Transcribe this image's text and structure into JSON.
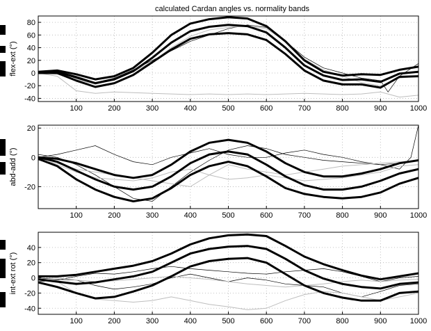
{
  "chart_data": [
    {
      "type": "line",
      "title": "calculated Cardan angles vs. normality bands",
      "ylabel": "flex-ext (°)",
      "xlim": [
        0,
        1000
      ],
      "ylim": [
        -45,
        90
      ],
      "xticks": [
        100,
        200,
        300,
        400,
        500,
        600,
        700,
        800,
        900,
        1000
      ],
      "yticks": [
        -40,
        -20,
        0,
        20,
        40,
        60,
        80
      ],
      "grid": true,
      "bands": {
        "x": [
          0,
          50,
          100,
          150,
          200,
          250,
          300,
          350,
          400,
          450,
          500,
          550,
          600,
          650,
          700,
          750,
          800,
          850,
          900,
          950,
          1000
        ],
        "upper": [
          2,
          4,
          -2,
          -10,
          -5,
          8,
          32,
          60,
          78,
          85,
          88,
          86,
          74,
          50,
          20,
          2,
          -4,
          -2,
          -3,
          5,
          10
        ],
        "mean": [
          1,
          2,
          -7,
          -16,
          -10,
          3,
          24,
          48,
          66,
          73,
          76,
          74,
          64,
          40,
          12,
          -4,
          -11,
          -10,
          -14,
          -1,
          2
        ],
        "lower": [
          0,
          0,
          -12,
          -22,
          -16,
          -3,
          17,
          37,
          54,
          61,
          63,
          61,
          52,
          30,
          4,
          -12,
          -18,
          -18,
          -23,
          -6,
          -5
        ]
      },
      "traces": [
        {
          "color": "#000000",
          "x": [
            0,
            50,
            100,
            150,
            200,
            250,
            300,
            350,
            400,
            450,
            500,
            550,
            600,
            650,
            700,
            750,
            800,
            850,
            900,
            920,
            950,
            1000
          ],
          "y": [
            0,
            3,
            -5,
            -15,
            -8,
            5,
            20,
            35,
            50,
            60,
            70,
            76,
            72,
            50,
            25,
            8,
            0,
            -8,
            -12,
            -30,
            -5,
            15
          ]
        },
        {
          "color": "#bdbdbd",
          "x": [
            0,
            50,
            100,
            150,
            200,
            250,
            300,
            350,
            400,
            450,
            500,
            550,
            600,
            650,
            700,
            750,
            800,
            850,
            900,
            950,
            1000
          ],
          "y": [
            0,
            -2,
            -10,
            -18,
            -10,
            2,
            18,
            40,
            58,
            68,
            72,
            74,
            70,
            50,
            22,
            5,
            -5,
            -15,
            -20,
            -8,
            -5
          ]
        },
        {
          "color": "#bdbdbd",
          "x": [
            0,
            50,
            100,
            150,
            200,
            250,
            300,
            350,
            400,
            450,
            500,
            550,
            600,
            650,
            700,
            750,
            800,
            850,
            900,
            950,
            1000
          ],
          "y": [
            0,
            -5,
            -28,
            -32,
            -30,
            -31,
            -32,
            -33,
            -34,
            -33,
            -34,
            -33,
            -34,
            -33,
            -32,
            -33,
            -34,
            -33,
            -30,
            -38,
            -35
          ]
        }
      ]
    },
    {
      "type": "line",
      "title": "",
      "ylabel": "abd-add (°)",
      "xlim": [
        0,
        1000
      ],
      "ylim": [
        -35,
        22
      ],
      "xticks": [
        100,
        200,
        300,
        400,
        500,
        600,
        700,
        800,
        900,
        1000
      ],
      "yticks": [
        -20,
        0,
        20
      ],
      "grid": true,
      "bands": {
        "x": [
          0,
          50,
          100,
          150,
          200,
          250,
          300,
          350,
          400,
          450,
          500,
          550,
          600,
          650,
          700,
          750,
          800,
          850,
          900,
          950,
          1000
        ],
        "upper": [
          0,
          -1,
          -4,
          -8,
          -12,
          -14,
          -12,
          -5,
          4,
          10,
          12,
          10,
          4,
          -4,
          -10,
          -13,
          -13,
          -11,
          -8,
          -4,
          -2
        ],
        "mean": [
          0,
          -3,
          -9,
          -15,
          -20,
          -22,
          -20,
          -13,
          -4,
          2,
          4,
          2,
          -5,
          -13,
          -19,
          -22,
          -22,
          -20,
          -16,
          -11,
          -8
        ],
        "lower": [
          -1,
          -6,
          -15,
          -22,
          -27,
          -30,
          -28,
          -21,
          -12,
          -6,
          -3,
          -6,
          -13,
          -21,
          -25,
          -27,
          -28,
          -27,
          -24,
          -18,
          -14
        ]
      },
      "traces": [
        {
          "color": "#000000",
          "x": [
            0,
            50,
            100,
            150,
            200,
            250,
            300,
            350,
            400,
            450,
            500,
            550,
            600,
            650,
            700,
            750,
            800,
            850,
            900,
            950,
            980,
            1000
          ],
          "y": [
            2,
            0,
            -5,
            -12,
            -20,
            -28,
            -30,
            -20,
            -10,
            -2,
            5,
            8,
            6,
            2,
            0,
            -2,
            -3,
            -4,
            -5,
            -8,
            0,
            22
          ]
        },
        {
          "color": "#000000",
          "x": [
            0,
            50,
            100,
            150,
            200,
            250,
            300,
            350,
            400,
            450,
            500,
            550,
            600,
            650,
            700,
            750,
            800,
            850,
            900,
            950,
            1000
          ],
          "y": [
            0,
            2,
            5,
            8,
            2,
            -3,
            -5,
            0,
            3,
            6,
            2,
            0,
            0,
            3,
            5,
            2,
            0,
            -3,
            -5,
            -4,
            -2
          ]
        },
        {
          "color": "#bdbdbd",
          "x": [
            0,
            50,
            100,
            150,
            200,
            250,
            300,
            350,
            400,
            450,
            500,
            550,
            600,
            650,
            700,
            750,
            800,
            850,
            900,
            950,
            1000
          ],
          "y": [
            -1,
            -5,
            -10,
            -14,
            -15,
            -16,
            -14,
            -10,
            -8,
            -12,
            -15,
            -14,
            -12,
            -14,
            -16,
            -15,
            -14,
            -12,
            -10,
            -6,
            -5
          ]
        },
        {
          "color": "#bdbdbd",
          "x": [
            0,
            50,
            100,
            150,
            200,
            250,
            300,
            350,
            400,
            450,
            500,
            550,
            600,
            650,
            700,
            750,
            800,
            850,
            900,
            950,
            1000
          ],
          "y": [
            -2,
            -4,
            -8,
            -10,
            -12,
            -14,
            -16,
            -18,
            -20,
            -12,
            -5,
            -8,
            -10,
            -12,
            -10,
            -8,
            -6,
            -5,
            -4,
            -3,
            -2
          ]
        }
      ]
    },
    {
      "type": "line",
      "title": "",
      "ylabel": "int-ext rot (°)",
      "xlim": [
        0,
        1000
      ],
      "ylim": [
        -48,
        60
      ],
      "xticks": [
        100,
        200,
        300,
        400,
        500,
        600,
        700,
        800,
        900,
        1000
      ],
      "yticks": [
        -40,
        -20,
        0,
        20,
        40
      ],
      "xticklabels": [
        "100",
        "200",
        "300",
        "400",
        "500",
        "600",
        "700",
        "800",
        "900",
        "1000"
      ],
      "grid": true,
      "bands": {
        "x": [
          0,
          50,
          100,
          150,
          200,
          250,
          300,
          350,
          400,
          450,
          500,
          550,
          600,
          650,
          700,
          750,
          800,
          850,
          900,
          950,
          1000
        ],
        "upper": [
          2,
          2,
          4,
          8,
          12,
          16,
          22,
          32,
          44,
          52,
          56,
          57,
          55,
          42,
          28,
          18,
          10,
          3,
          -2,
          2,
          6
        ],
        "mean": [
          -2,
          -5,
          -8,
          -6,
          -2,
          2,
          8,
          20,
          32,
          38,
          41,
          42,
          38,
          25,
          10,
          -1,
          -8,
          -12,
          -14,
          -8,
          -6
        ],
        "lower": [
          -6,
          -12,
          -20,
          -27,
          -25,
          -18,
          -10,
          2,
          15,
          22,
          25,
          26,
          20,
          5,
          -10,
          -20,
          -26,
          -30,
          -30,
          -20,
          -18
        ]
      },
      "traces": [
        {
          "color": "#000000",
          "x": [
            0,
            50,
            100,
            150,
            200,
            250,
            300,
            350,
            400,
            450,
            500,
            550,
            600,
            650,
            700,
            750,
            800,
            850,
            900,
            950,
            1000
          ],
          "y": [
            0,
            -2,
            -3,
            -10,
            -15,
            -12,
            -8,
            0,
            5,
            0,
            -5,
            0,
            -3,
            -8,
            -10,
            -12,
            -20,
            -25,
            -18,
            -10,
            -8
          ]
        },
        {
          "color": "#000000",
          "x": [
            0,
            50,
            100,
            150,
            200,
            250,
            300,
            350,
            400,
            450,
            500,
            550,
            600,
            650,
            700,
            750,
            800,
            850,
            900,
            950,
            1000
          ],
          "y": [
            -5,
            -3,
            2,
            6,
            5,
            8,
            12,
            15,
            12,
            10,
            8,
            6,
            5,
            8,
            10,
            12,
            8,
            2,
            -5,
            0,
            2
          ]
        },
        {
          "color": "#bdbdbd",
          "x": [
            0,
            50,
            100,
            150,
            200,
            250,
            300,
            350,
            400,
            450,
            500,
            550,
            600,
            650,
            700,
            750,
            800,
            850,
            900,
            950,
            1000
          ],
          "y": [
            0,
            -5,
            -20,
            -28,
            -30,
            -32,
            -30,
            -25,
            -30,
            -35,
            -38,
            -42,
            -40,
            -30,
            -22,
            -18,
            -20,
            -25,
            -30,
            -25,
            -20
          ]
        },
        {
          "color": "#bdbdbd",
          "x": [
            0,
            50,
            100,
            150,
            200,
            250,
            300,
            350,
            400,
            450,
            500,
            550,
            600,
            650,
            700,
            750,
            800,
            850,
            900,
            950,
            1000
          ],
          "y": [
            2,
            0,
            -3,
            -5,
            -4,
            -2,
            0,
            2,
            0,
            -2,
            -5,
            -8,
            -10,
            -12,
            -10,
            -8,
            -5,
            -3,
            -5,
            -3,
            -2
          ]
        }
      ]
    }
  ]
}
